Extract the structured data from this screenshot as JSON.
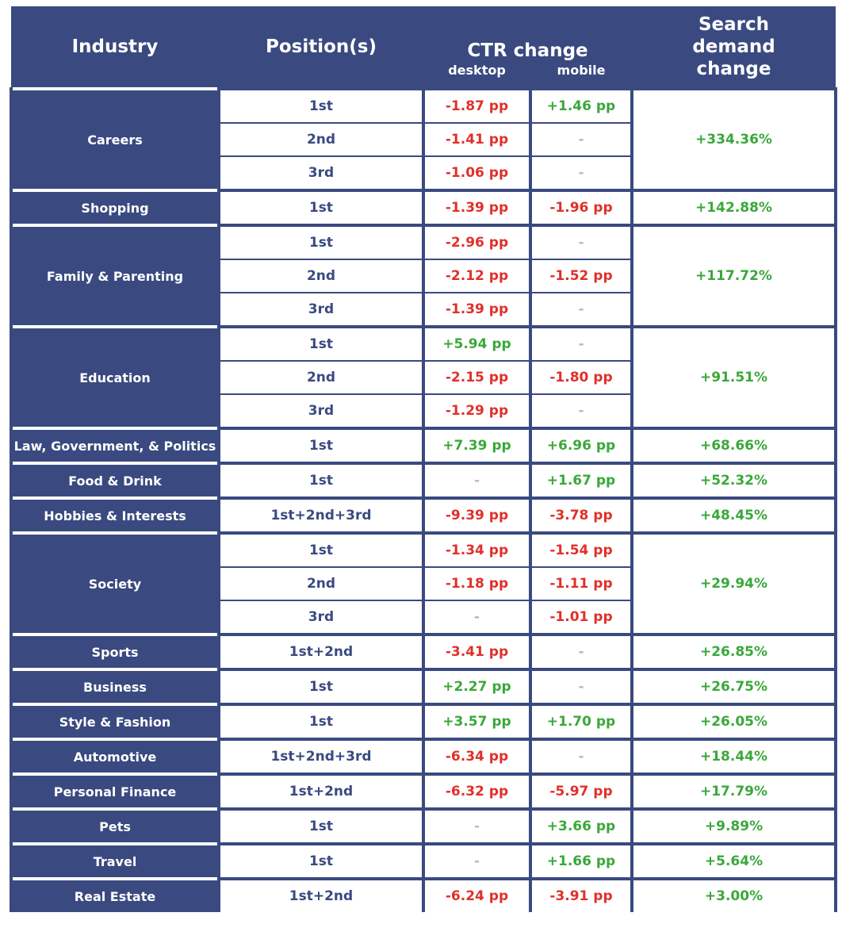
{
  "header": {
    "industry": "Industry",
    "position": "Position(s)",
    "ctr": "CTR change",
    "desktop": "desktop",
    "mobile": "mobile",
    "demand": "Search demand change"
  },
  "groups": [
    {
      "industry": "Careers",
      "demand": "+334.36%",
      "rows": [
        {
          "position": "1st",
          "desktop": "-1.87 pp",
          "mobile": "+1.46 pp"
        },
        {
          "position": "2nd",
          "desktop": "-1.41 pp",
          "mobile": "-"
        },
        {
          "position": "3rd",
          "desktop": "-1.06 pp",
          "mobile": "-"
        }
      ]
    },
    {
      "industry": "Shopping",
      "demand": "+142.88%",
      "rows": [
        {
          "position": "1st",
          "desktop": "-1.39 pp",
          "mobile": "-1.96 pp"
        }
      ]
    },
    {
      "industry": "Family & Parenting",
      "demand": "+117.72%",
      "rows": [
        {
          "position": "1st",
          "desktop": "-2.96 pp",
          "mobile": "-"
        },
        {
          "position": "2nd",
          "desktop": "-2.12 pp",
          "mobile": "-1.52 pp"
        },
        {
          "position": "3rd",
          "desktop": "-1.39 pp",
          "mobile": "-"
        }
      ]
    },
    {
      "industry": "Education",
      "demand": "+91.51%",
      "rows": [
        {
          "position": "1st",
          "desktop": "+5.94 pp",
          "mobile": "-"
        },
        {
          "position": "2nd",
          "desktop": "-2.15 pp",
          "mobile": "-1.80 pp"
        },
        {
          "position": "3rd",
          "desktop": "-1.29 pp",
          "mobile": "-"
        }
      ]
    },
    {
      "industry": "Law, Government, & Politics",
      "demand": "+68.66%",
      "rows": [
        {
          "position": "1st",
          "desktop": "+7.39 pp",
          "mobile": "+6.96 pp"
        }
      ]
    },
    {
      "industry": "Food & Drink",
      "demand": "+52.32%",
      "rows": [
        {
          "position": "1st",
          "desktop": "-",
          "mobile": "+1.67 pp"
        }
      ]
    },
    {
      "industry": "Hobbies & Interests",
      "demand": "+48.45%",
      "rows": [
        {
          "position": "1st+2nd+3rd",
          "desktop": "-9.39 pp",
          "mobile": "-3.78 pp"
        }
      ]
    },
    {
      "industry": "Society",
      "demand": "+29.94%",
      "rows": [
        {
          "position": "1st",
          "desktop": "-1.34 pp",
          "mobile": "-1.54 pp"
        },
        {
          "position": "2nd",
          "desktop": "-1.18 pp",
          "mobile": "-1.11 pp"
        },
        {
          "position": "3rd",
          "desktop": "-",
          "mobile": "-1.01 pp"
        }
      ]
    },
    {
      "industry": "Sports",
      "demand": "+26.85%",
      "rows": [
        {
          "position": "1st+2nd",
          "desktop": "-3.41 pp",
          "mobile": "-"
        }
      ]
    },
    {
      "industry": "Business",
      "demand": "+26.75%",
      "rows": [
        {
          "position": "1st",
          "desktop": "+2.27 pp",
          "mobile": "-"
        }
      ]
    },
    {
      "industry": "Style & Fashion",
      "demand": "+26.05%",
      "rows": [
        {
          "position": "1st",
          "desktop": "+3.57 pp",
          "mobile": "+1.70 pp"
        }
      ]
    },
    {
      "industry": "Automotive",
      "demand": "+18.44%",
      "rows": [
        {
          "position": "1st+2nd+3rd",
          "desktop": "-6.34 pp",
          "mobile": "-"
        }
      ]
    },
    {
      "industry": "Personal Finance",
      "demand": "+17.79%",
      "rows": [
        {
          "position": "1st+2nd",
          "desktop": "-6.32 pp",
          "mobile": "-5.97 pp"
        }
      ]
    },
    {
      "industry": "Pets",
      "demand": "+9.89%",
      "rows": [
        {
          "position": "1st",
          "desktop": "-",
          "mobile": "+3.66 pp"
        }
      ]
    },
    {
      "industry": "Travel",
      "demand": "+5.64%",
      "rows": [
        {
          "position": "1st",
          "desktop": "-",
          "mobile": "+1.66 pp"
        }
      ]
    },
    {
      "industry": "Real Estate",
      "demand": "+3.00%",
      "rows": [
        {
          "position": "1st+2nd",
          "desktop": "-6.24 pp",
          "mobile": "-3.91 pp"
        }
      ]
    }
  ]
}
